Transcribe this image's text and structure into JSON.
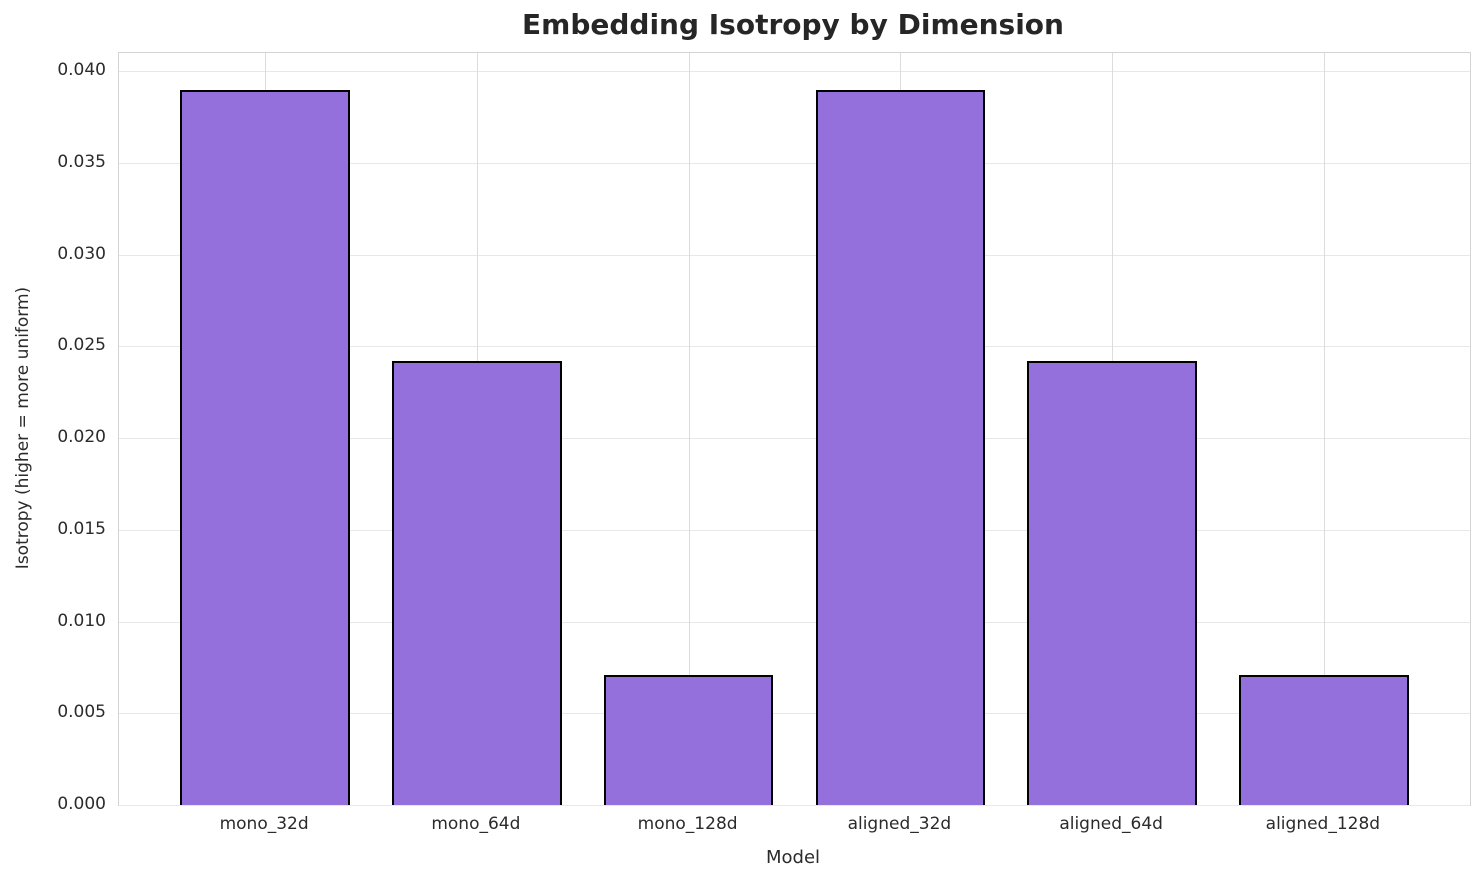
{
  "chart_data": {
    "type": "bar",
    "title": "Embedding Isotropy by Dimension",
    "xlabel": "Model",
    "ylabel": "Isotropy (higher = more uniform)",
    "categories": [
      "mono_32d",
      "mono_64d",
      "mono_128d",
      "aligned_32d",
      "aligned_64d",
      "aligned_128d"
    ],
    "values": [
      0.039,
      0.0242,
      0.0071,
      0.039,
      0.0242,
      0.0071
    ],
    "ylim": [
      0,
      0.041
    ],
    "yticks": [
      0.0,
      0.005,
      0.01,
      0.015,
      0.02,
      0.025,
      0.03,
      0.035,
      0.04
    ],
    "ytick_labels": [
      "0.000",
      "0.005",
      "0.010",
      "0.015",
      "0.020",
      "0.025",
      "0.030",
      "0.035",
      "0.040"
    ],
    "grid": true,
    "legend": "none",
    "bar_color": "#9370DB",
    "bar_edge_color": "#000000"
  }
}
